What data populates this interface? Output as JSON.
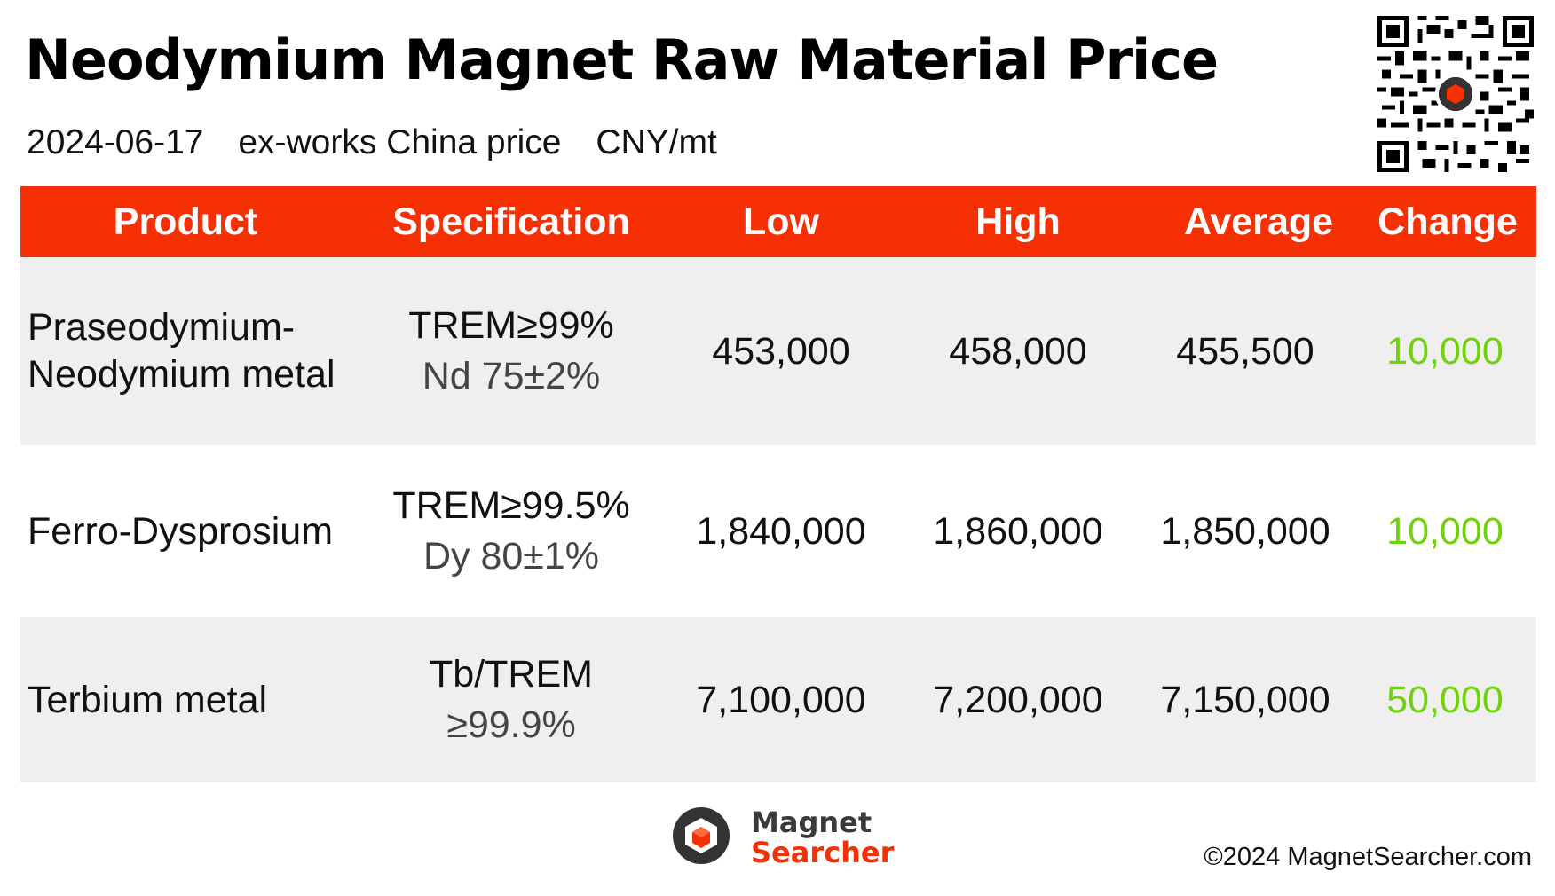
{
  "title": "Neodymium Magnet Raw Material Price",
  "subtitle": {
    "date": "2024-06-17",
    "basis": "ex-works China price",
    "unit": "CNY/mt"
  },
  "colors": {
    "header_bg": "#f53005",
    "row_alt_bg": "#efefef",
    "change_positive": "#6fd20a"
  },
  "table": {
    "headers": [
      "Product",
      "Specification",
      "Low",
      "High",
      "Average",
      "Change"
    ],
    "rows": [
      {
        "product_line1": "Praseodymium-",
        "product_line2": "Neodymium metal",
        "spec_line1": "TREM≥99%",
        "spec_line2": "Nd 75±2%",
        "low": "453,000",
        "high": "458,000",
        "average": "455,500",
        "change": "10,000"
      },
      {
        "product_line1": "Ferro-Dysprosium",
        "product_line2": "",
        "spec_line1": "TREM≥99.5%",
        "spec_line2": "Dy 80±1%",
        "low": "1,840,000",
        "high": "1,860,000",
        "average": "1,850,000",
        "change": "10,000"
      },
      {
        "product_line1": "Terbium metal",
        "product_line2": "",
        "spec_line1": "Tb/TREM",
        "spec_line2": "≥99.9%",
        "low": "7,100,000",
        "high": "7,200,000",
        "average": "7,150,000",
        "change": "50,000"
      }
    ]
  },
  "footer": {
    "brand_line1": "Magnet",
    "brand_line2": "Searcher",
    "copyright": "©2024 MagnetSearcher.com"
  },
  "icons": {
    "qr": "qr-code-icon",
    "logo": "magnet-searcher-logo"
  }
}
